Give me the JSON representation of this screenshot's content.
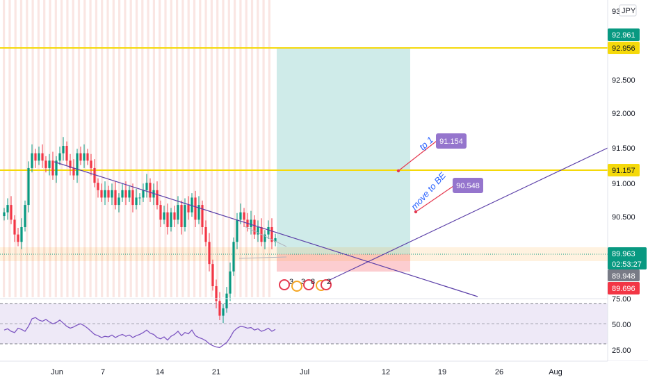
{
  "chart_data": {
    "type": "candlestick",
    "symbol_currency": "JPY",
    "price_axis": {
      "range": [
        89.15,
        93.1
      ],
      "ticks": [
        "92.500",
        "92.000",
        "91.500",
        "91.000",
        "90.500"
      ],
      "top_partial": "93"
    },
    "time_axis": {
      "labels": [
        "Jun",
        "7",
        "14",
        "21",
        "Jul",
        "12",
        "19",
        "26",
        "Aug"
      ]
    },
    "price_tags": [
      {
        "label": "92.961",
        "price": 92.961,
        "color": "#089981"
      },
      {
        "label": "92.956",
        "price": 92.956,
        "color": "#f5d90a"
      },
      {
        "label": "91.157",
        "price": 91.157,
        "color": "#f5d90a"
      },
      {
        "label": "89.963",
        "sub": "02:53:27",
        "price": 89.963,
        "color": "#089981"
      },
      {
        "label": "89.948",
        "price": 89.948,
        "color": "#787b86"
      },
      {
        "label": "89.696",
        "price": 89.696,
        "color": "#f23645"
      }
    ],
    "horizontal_levels": [
      92.956,
      91.157
    ],
    "position": {
      "entry": 89.948,
      "target": 92.956,
      "stop": 89.696
    },
    "annotations": [
      {
        "text": "tp 1",
        "value_label": "91.154",
        "price": 91.154
      },
      {
        "text": "move to BE",
        "value_label": "90.548",
        "price": 90.548
      }
    ],
    "event_markers": [
      "3",
      "3",
      "8",
      "2"
    ],
    "candles_close": [
      90.3,
      90.4,
      90.2,
      90.0,
      89.9,
      90.1,
      90.4,
      90.9,
      91.1,
      91.0,
      91.1,
      91.0,
      90.9,
      91.0,
      90.8,
      91.0,
      91.1,
      91.2,
      91.0,
      90.9,
      90.8,
      91.1,
      91.0,
      91.1,
      91.0,
      90.9,
      90.7,
      90.6,
      90.5,
      90.6,
      90.5,
      90.6,
      90.4,
      90.5,
      90.6,
      90.5,
      90.6,
      90.4,
      90.5,
      90.5,
      90.6,
      90.7,
      90.5,
      90.6,
      90.4,
      90.2,
      90.3,
      90.1,
      90.3,
      90.2,
      90.4,
      90.1,
      90.4,
      90.3,
      90.5,
      90.2,
      90.4,
      90.1,
      89.9,
      89.6,
      89.3,
      89.1,
      88.9,
      89.0,
      89.2,
      89.5,
      89.9,
      90.2,
      90.3,
      90.2,
      90.1,
      90.2,
      90.0,
      90.1,
      89.9,
      90.0,
      90.1,
      89.9,
      89.95
    ],
    "rsi": {
      "ticks": [
        "75.00",
        "50.00",
        "25.00"
      ],
      "upper": 70,
      "lower": 30,
      "values": [
        52,
        54,
        50,
        48,
        55,
        53,
        50,
        58,
        70,
        72,
        68,
        66,
        69,
        65,
        62,
        64,
        68,
        63,
        58,
        55,
        57,
        60,
        62,
        59,
        55,
        50,
        45,
        43,
        40,
        42,
        41,
        44,
        40,
        43,
        45,
        42,
        44,
        40,
        43,
        45,
        48,
        52,
        47,
        45,
        40,
        38,
        41,
        36,
        42,
        45,
        50,
        43,
        48,
        46,
        52,
        43,
        40,
        38,
        35,
        30,
        27,
        25,
        24,
        28,
        32,
        40,
        50,
        55,
        58,
        57,
        55,
        56,
        52,
        54,
        50,
        52,
        55,
        50,
        53
      ]
    }
  }
}
